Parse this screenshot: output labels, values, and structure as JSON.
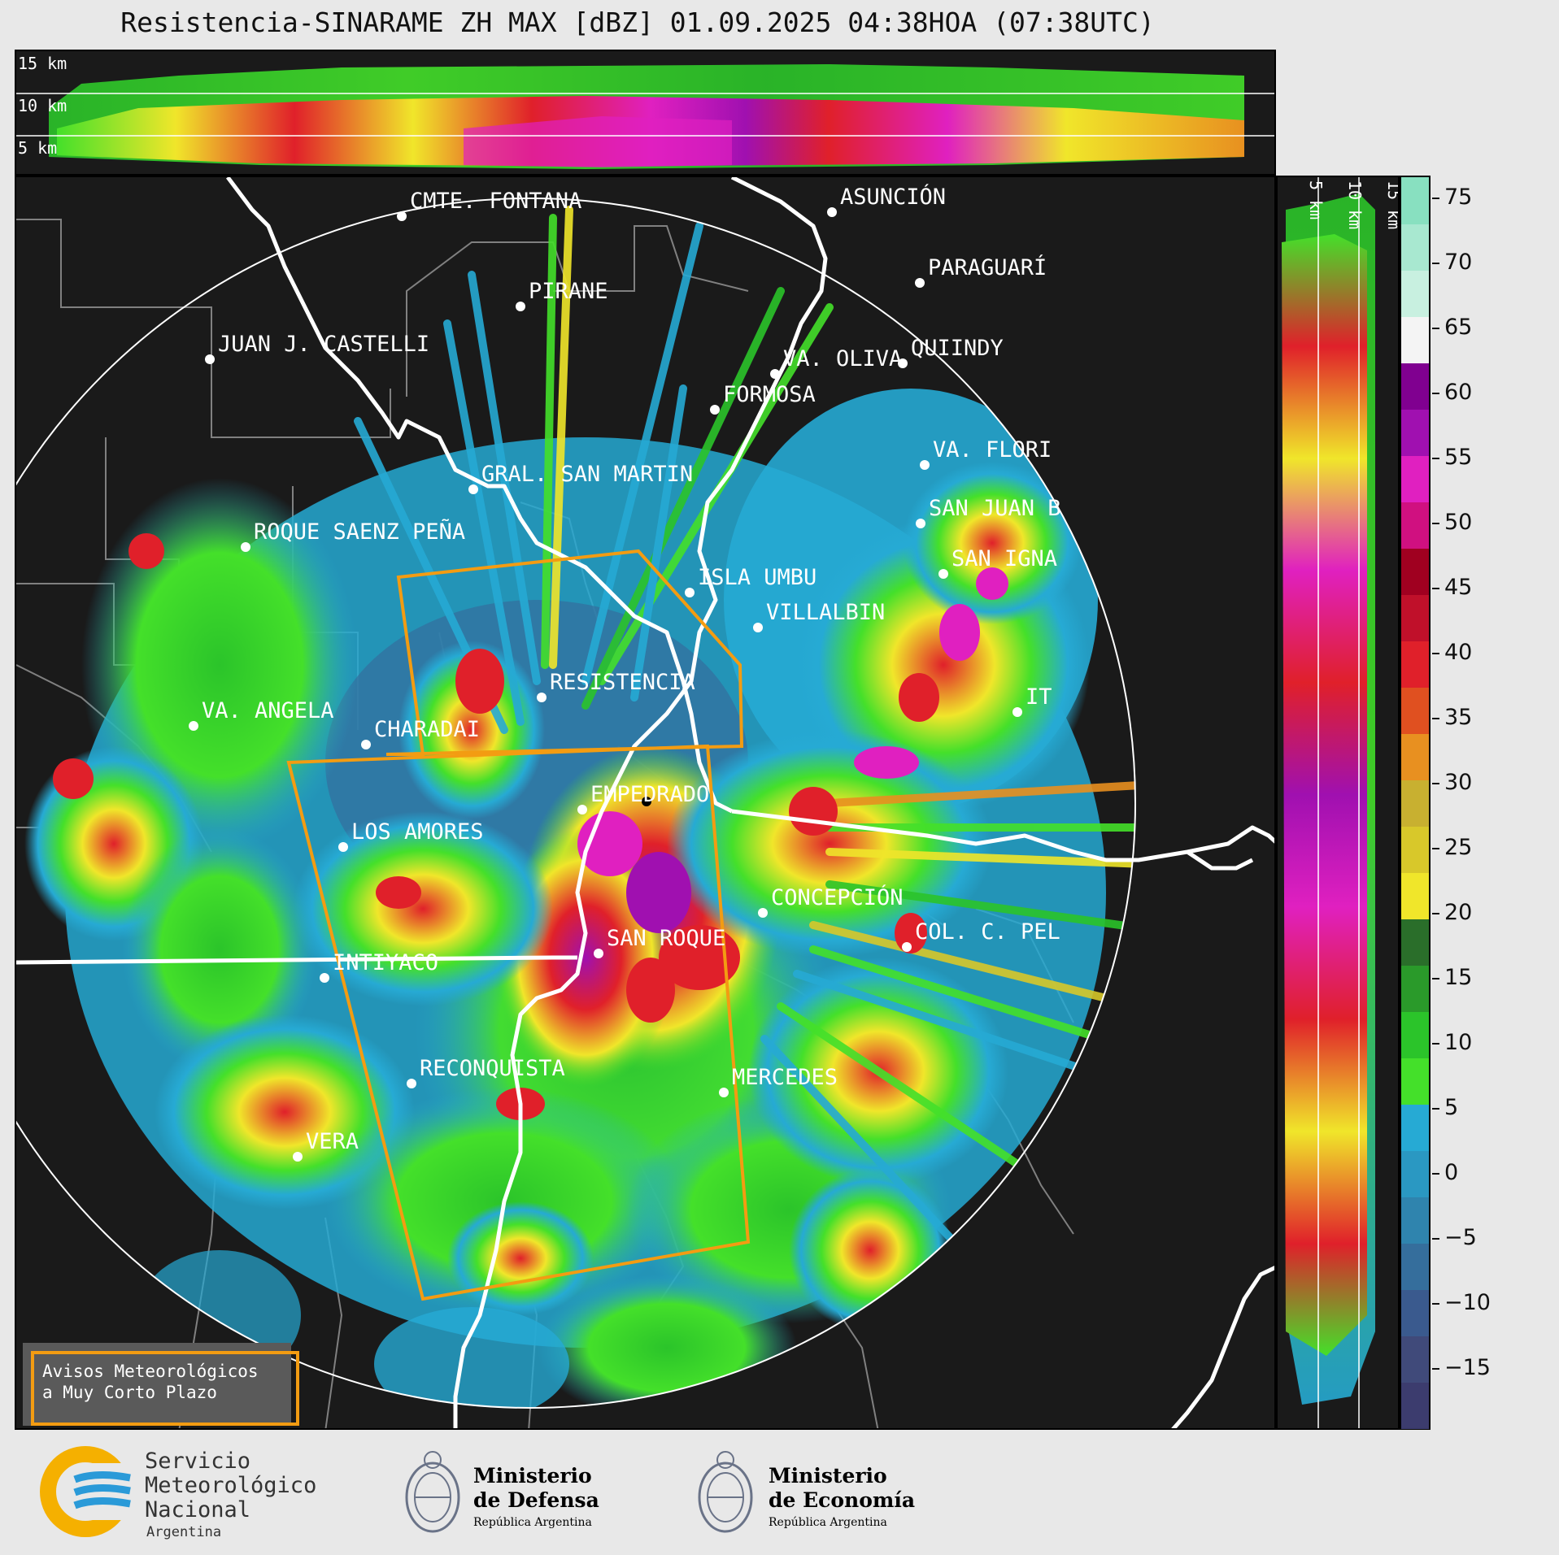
{
  "title": "Resistencia-SINARAME ZH MAX [dBZ] 01.09.2025 04:38HOA (07:38UTC)",
  "top_panel": {
    "height_labels": [
      "15 km",
      "10 km",
      "5 km"
    ]
  },
  "right_panel": {
    "height_labels": [
      "5 km",
      "10 km",
      "15 km"
    ]
  },
  "colorbar": {
    "unit": "dBZ",
    "ticks": [
      "75",
      "70",
      "65",
      "60",
      "55",
      "50",
      "45",
      "40",
      "35",
      "30",
      "25",
      "20",
      "15",
      "10",
      "5",
      "0",
      "−5",
      "−10",
      "−15"
    ],
    "colors": [
      "#3c3c6e",
      "#404a7a",
      "#3a5a8e",
      "#356e9c",
      "#2f84ae",
      "#2a98c2",
      "#26aad4",
      "#44e02a",
      "#2bc42a",
      "#2a9a2a",
      "#2a6e2a",
      "#f0e62a",
      "#d8c82a",
      "#c8b030",
      "#e89020",
      "#e05020",
      "#e0202a",
      "#c0102a",
      "#a00020",
      "#d01080",
      "#e020c0",
      "#a010b0",
      "#800090",
      "#f4f4f4",
      "#c8f0e0",
      "#a8e8d0",
      "#88e0c0"
    ]
  },
  "cities": [
    {
      "name": "CMTE. FONTANA"
    },
    {
      "name": "ASUNCIÓN"
    },
    {
      "name": "PARAGUARÍ"
    },
    {
      "name": "PIRANE"
    },
    {
      "name": "JUAN J. CASTELLI"
    },
    {
      "name": "VA. OLIVA"
    },
    {
      "name": "QUIINDY"
    },
    {
      "name": "FORMOSA"
    },
    {
      "name": "VA. FLORI"
    },
    {
      "name": "GRAL. SAN MARTIN"
    },
    {
      "name": "SAN JUAN B"
    },
    {
      "name": "ROQUE SAENZ PEÑA"
    },
    {
      "name": "SAN IGNA"
    },
    {
      "name": "ISLA UMBU"
    },
    {
      "name": "VILLALBIN"
    },
    {
      "name": "RESISTENCIA"
    },
    {
      "name": "VA. ANGELA"
    },
    {
      "name": "CHARADAI"
    },
    {
      "name": "IT"
    },
    {
      "name": "EMPEDRADO"
    },
    {
      "name": "LOS AMORES"
    },
    {
      "name": "CONCEPCIÓN"
    },
    {
      "name": "COL. C. PEL"
    },
    {
      "name": "SAN ROQUE"
    },
    {
      "name": "INTIYACO"
    },
    {
      "name": "RECONQUISTA"
    },
    {
      "name": "MERCEDES"
    },
    {
      "name": "VERA"
    }
  ],
  "aviso": {
    "line1": "Avisos Meteorológicos",
    "line2": "a Muy Corto Plazo"
  },
  "logos": {
    "smn": {
      "line1": "Servicio",
      "line2": "Meteorológico",
      "line3": "Nacional",
      "line4": "Argentina"
    },
    "defensa": {
      "line1": "Ministerio",
      "line2": "de Defensa",
      "line3": "República Argentina"
    },
    "economia": {
      "line1": "Ministerio",
      "line2": "de Economía",
      "line3": "República Argentina"
    }
  }
}
